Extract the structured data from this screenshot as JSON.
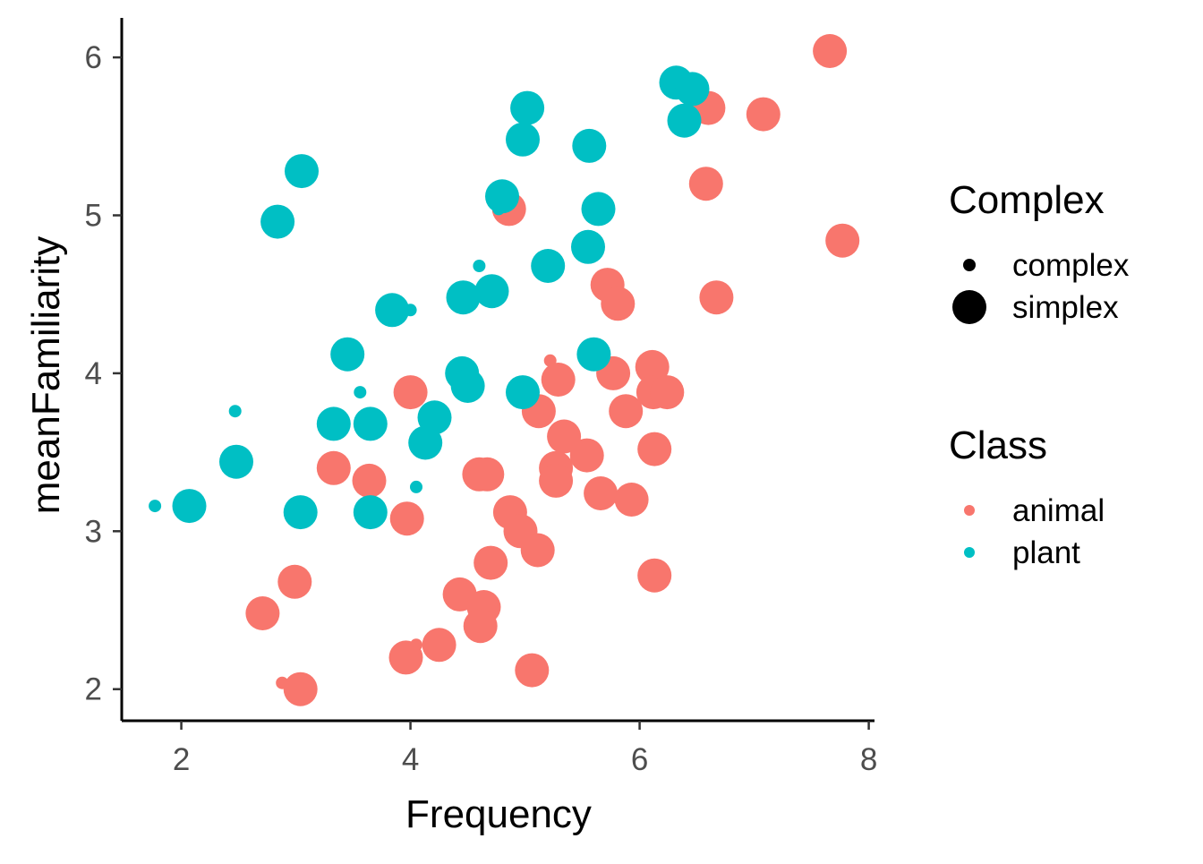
{
  "chart_data": {
    "type": "scatter",
    "xlabel": "Frequency",
    "ylabel": "meanFamiliarity",
    "xlim": [
      1.48,
      8.05
    ],
    "ylim": [
      1.8,
      6.25
    ],
    "x_ticks": [
      2,
      4,
      6,
      8
    ],
    "y_ticks": [
      2,
      3,
      4,
      5,
      6
    ],
    "grid": false,
    "legend_position": "right",
    "colors": {
      "animal": "#F8766D",
      "plant": "#00BFC4"
    },
    "legends": {
      "size": {
        "title": "Complex",
        "entries": [
          {
            "label": "complex",
            "value": "complex"
          },
          {
            "label": "simplex",
            "value": "simplex"
          }
        ]
      },
      "color": {
        "title": "Class",
        "entries": [
          {
            "label": "animal",
            "value": "animal"
          },
          {
            "label": "plant",
            "value": "plant"
          }
        ]
      }
    },
    "series": [
      {
        "name": "animal",
        "points": [
          {
            "x": 7.66,
            "y": 6.04,
            "complex": "simplex"
          },
          {
            "x": 7.08,
            "y": 5.64,
            "complex": "simplex"
          },
          {
            "x": 6.6,
            "y": 5.68,
            "complex": "simplex"
          },
          {
            "x": 6.58,
            "y": 5.2,
            "complex": "simplex"
          },
          {
            "x": 7.77,
            "y": 4.84,
            "complex": "simplex"
          },
          {
            "x": 6.67,
            "y": 4.48,
            "complex": "simplex"
          },
          {
            "x": 4.86,
            "y": 5.04,
            "complex": "simplex"
          },
          {
            "x": 5.72,
            "y": 4.56,
            "complex": "simplex"
          },
          {
            "x": 5.81,
            "y": 4.44,
            "complex": "simplex"
          },
          {
            "x": 5.22,
            "y": 4.08,
            "complex": "complex"
          },
          {
            "x": 5.29,
            "y": 3.96,
            "complex": "simplex"
          },
          {
            "x": 5.77,
            "y": 4.0,
            "complex": "simplex"
          },
          {
            "x": 6.11,
            "y": 4.04,
            "complex": "simplex"
          },
          {
            "x": 6.12,
            "y": 3.88,
            "complex": "simplex"
          },
          {
            "x": 6.24,
            "y": 3.88,
            "complex": "simplex"
          },
          {
            "x": 4.0,
            "y": 3.88,
            "complex": "simplex"
          },
          {
            "x": 5.88,
            "y": 3.76,
            "complex": "simplex"
          },
          {
            "x": 5.12,
            "y": 3.76,
            "complex": "simplex"
          },
          {
            "x": 5.34,
            "y": 3.6,
            "complex": "simplex"
          },
          {
            "x": 5.54,
            "y": 3.48,
            "complex": "simplex"
          },
          {
            "x": 6.13,
            "y": 3.52,
            "complex": "simplex"
          },
          {
            "x": 5.27,
            "y": 3.4,
            "complex": "simplex"
          },
          {
            "x": 5.27,
            "y": 3.32,
            "complex": "simplex"
          },
          {
            "x": 4.6,
            "y": 3.36,
            "complex": "simplex"
          },
          {
            "x": 4.67,
            "y": 3.36,
            "complex": "simplex"
          },
          {
            "x": 3.33,
            "y": 3.4,
            "complex": "simplex"
          },
          {
            "x": 3.64,
            "y": 3.32,
            "complex": "simplex"
          },
          {
            "x": 5.66,
            "y": 3.24,
            "complex": "simplex"
          },
          {
            "x": 5.93,
            "y": 3.2,
            "complex": "simplex"
          },
          {
            "x": 4.87,
            "y": 3.12,
            "complex": "simplex"
          },
          {
            "x": 3.97,
            "y": 3.08,
            "complex": "simplex"
          },
          {
            "x": 4.96,
            "y": 3.0,
            "complex": "simplex"
          },
          {
            "x": 5.11,
            "y": 2.88,
            "complex": "simplex"
          },
          {
            "x": 4.7,
            "y": 2.8,
            "complex": "simplex"
          },
          {
            "x": 6.13,
            "y": 2.72,
            "complex": "simplex"
          },
          {
            "x": 2.99,
            "y": 2.68,
            "complex": "simplex"
          },
          {
            "x": 4.43,
            "y": 2.6,
            "complex": "simplex"
          },
          {
            "x": 4.64,
            "y": 2.52,
            "complex": "simplex"
          },
          {
            "x": 2.71,
            "y": 2.48,
            "complex": "simplex"
          },
          {
            "x": 4.61,
            "y": 2.4,
            "complex": "simplex"
          },
          {
            "x": 4.25,
            "y": 2.28,
            "complex": "simplex"
          },
          {
            "x": 4.05,
            "y": 2.28,
            "complex": "complex"
          },
          {
            "x": 3.96,
            "y": 2.2,
            "complex": "simplex"
          },
          {
            "x": 5.06,
            "y": 2.12,
            "complex": "simplex"
          },
          {
            "x": 2.88,
            "y": 2.04,
            "complex": "complex"
          },
          {
            "x": 3.04,
            "y": 2.0,
            "complex": "simplex"
          }
        ]
      },
      {
        "name": "plant",
        "points": [
          {
            "x": 6.32,
            "y": 5.84,
            "complex": "simplex"
          },
          {
            "x": 6.46,
            "y": 5.8,
            "complex": "simplex"
          },
          {
            "x": 6.39,
            "y": 5.6,
            "complex": "simplex"
          },
          {
            "x": 5.02,
            "y": 5.68,
            "complex": "simplex"
          },
          {
            "x": 4.98,
            "y": 5.48,
            "complex": "simplex"
          },
          {
            "x": 5.56,
            "y": 5.44,
            "complex": "simplex"
          },
          {
            "x": 3.05,
            "y": 5.28,
            "complex": "simplex"
          },
          {
            "x": 4.8,
            "y": 5.12,
            "complex": "simplex"
          },
          {
            "x": 4.77,
            "y": 5.04,
            "complex": "complex"
          },
          {
            "x": 5.64,
            "y": 5.04,
            "complex": "simplex"
          },
          {
            "x": 2.84,
            "y": 4.96,
            "complex": "simplex"
          },
          {
            "x": 5.55,
            "y": 4.8,
            "complex": "simplex"
          },
          {
            "x": 5.2,
            "y": 4.68,
            "complex": "simplex"
          },
          {
            "x": 4.6,
            "y": 4.68,
            "complex": "complex"
          },
          {
            "x": 4.71,
            "y": 4.52,
            "complex": "simplex"
          },
          {
            "x": 4.46,
            "y": 4.48,
            "complex": "simplex"
          },
          {
            "x": 3.84,
            "y": 4.4,
            "complex": "simplex"
          },
          {
            "x": 4.0,
            "y": 4.4,
            "complex": "complex"
          },
          {
            "x": 3.45,
            "y": 4.12,
            "complex": "simplex"
          },
          {
            "x": 5.6,
            "y": 4.12,
            "complex": "simplex"
          },
          {
            "x": 4.45,
            "y": 4.0,
            "complex": "simplex"
          },
          {
            "x": 4.5,
            "y": 3.92,
            "complex": "simplex"
          },
          {
            "x": 4.98,
            "y": 3.88,
            "complex": "simplex"
          },
          {
            "x": 3.56,
            "y": 3.88,
            "complex": "complex"
          },
          {
            "x": 2.47,
            "y": 3.76,
            "complex": "complex"
          },
          {
            "x": 4.21,
            "y": 3.72,
            "complex": "simplex"
          },
          {
            "x": 3.33,
            "y": 3.68,
            "complex": "simplex"
          },
          {
            "x": 3.65,
            "y": 3.68,
            "complex": "simplex"
          },
          {
            "x": 4.13,
            "y": 3.56,
            "complex": "simplex"
          },
          {
            "x": 2.48,
            "y": 3.44,
            "complex": "simplex"
          },
          {
            "x": 4.05,
            "y": 3.28,
            "complex": "complex"
          },
          {
            "x": 1.77,
            "y": 3.16,
            "complex": "complex"
          },
          {
            "x": 2.07,
            "y": 3.16,
            "complex": "simplex"
          },
          {
            "x": 3.04,
            "y": 3.12,
            "complex": "simplex"
          },
          {
            "x": 3.65,
            "y": 3.12,
            "complex": "simplex"
          }
        ]
      }
    ]
  }
}
